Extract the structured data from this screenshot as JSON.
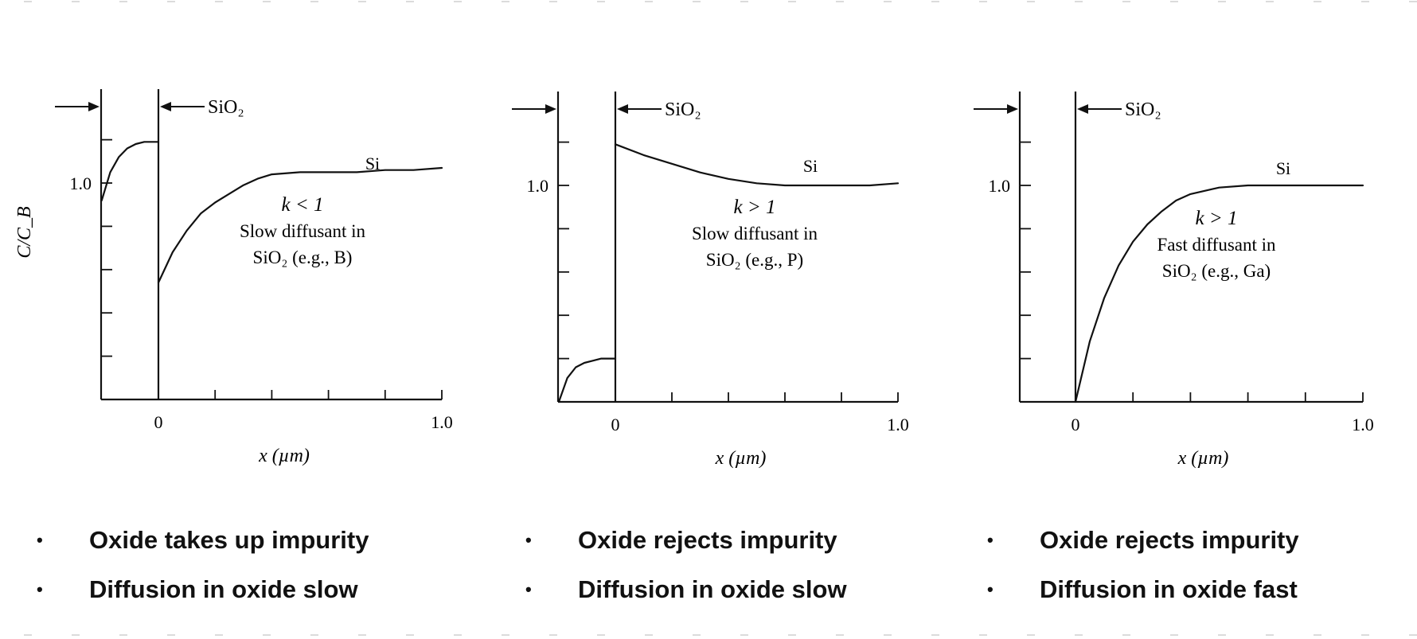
{
  "colors": {
    "line": "#111111",
    "edge_dash": "#cfcfcf"
  },
  "chart_data": [
    {
      "type": "line",
      "ylabel": "C/C_B",
      "xlabel": "x (µm)",
      "xlim": [
        -0.2,
        1.0
      ],
      "ylim": [
        0,
        1.25
      ],
      "x_tick_labels": [
        "0",
        "1.0"
      ],
      "y_tick_labels": [
        "1.0"
      ],
      "region_labels": {
        "oxide": "SiO₂",
        "silicon": "Si"
      },
      "annotation": [
        "k < 1",
        "Slow diffusant in",
        "SiO₂ (e.g., B)"
      ],
      "series": [
        {
          "x": [
            -0.2,
            -0.17,
            -0.14,
            -0.11,
            -0.08,
            -0.05,
            -0.02,
            0.0
          ],
          "y": [
            0.92,
            1.05,
            1.12,
            1.16,
            1.18,
            1.19,
            1.19,
            1.19
          ]
        },
        {
          "x": [
            0.0,
            0.05,
            0.1,
            0.15,
            0.2,
            0.25,
            0.3,
            0.35,
            0.4,
            0.5,
            0.6,
            0.7,
            0.8,
            0.9,
            1.0
          ],
          "y": [
            0.54,
            0.68,
            0.78,
            0.86,
            0.91,
            0.95,
            0.99,
            1.02,
            1.04,
            1.05,
            1.05,
            1.05,
            1.06,
            1.06,
            1.07
          ]
        }
      ]
    },
    {
      "type": "line",
      "xlabel": "x (µm)",
      "xlim": [
        -0.2,
        1.0
      ],
      "ylim": [
        0,
        1.25
      ],
      "x_tick_labels": [
        "0",
        "1.0"
      ],
      "y_tick_labels": [
        "1.0"
      ],
      "region_labels": {
        "oxide": "SiO₂",
        "silicon": "Si"
      },
      "annotation": [
        "k > 1",
        "Slow diffusant in",
        "SiO₂ (e.g., P)"
      ],
      "series": [
        {
          "x": [
            -0.2,
            -0.17,
            -0.14,
            -0.11,
            -0.08,
            -0.05,
            -0.02,
            0.0
          ],
          "y": [
            0.0,
            0.11,
            0.16,
            0.18,
            0.19,
            0.2,
            0.2,
            0.2
          ]
        },
        {
          "x": [
            0.0,
            0.1,
            0.2,
            0.3,
            0.4,
            0.5,
            0.6,
            0.7,
            0.8,
            0.9,
            1.0
          ],
          "y": [
            1.19,
            1.14,
            1.1,
            1.06,
            1.03,
            1.01,
            1.0,
            1.0,
            1.0,
            1.0,
            1.01
          ]
        }
      ]
    },
    {
      "type": "line",
      "xlabel": "x (µm)",
      "xlim": [
        -0.2,
        1.0
      ],
      "ylim": [
        0,
        1.25
      ],
      "x_tick_labels": [
        "0",
        "1.0"
      ],
      "y_tick_labels": [
        "1.0"
      ],
      "region_labels": {
        "oxide": "SiO₂",
        "silicon": "Si"
      },
      "annotation": [
        "k > 1",
        "Fast diffusant in",
        "SiO₂ (e.g., Ga)"
      ],
      "series": [
        {
          "x": [
            0.0,
            0.05,
            0.1,
            0.15,
            0.2,
            0.25,
            0.3,
            0.35,
            0.4,
            0.5,
            0.6,
            0.7,
            0.8,
            0.9,
            1.0
          ],
          "y": [
            0.0,
            0.28,
            0.48,
            0.63,
            0.74,
            0.82,
            0.88,
            0.93,
            0.96,
            0.99,
            1.0,
            1.0,
            1.0,
            1.0,
            1.0
          ]
        }
      ]
    }
  ],
  "bullets": [
    {
      "items": [
        "Oxide takes up impurity",
        "Diffusion in oxide slow"
      ]
    },
    {
      "items": [
        "Oxide rejects impurity",
        "Diffusion in oxide slow"
      ]
    },
    {
      "items": [
        "Oxide rejects impurity",
        "Diffusion in oxide fast"
      ]
    }
  ],
  "bullet_symbol": "•"
}
